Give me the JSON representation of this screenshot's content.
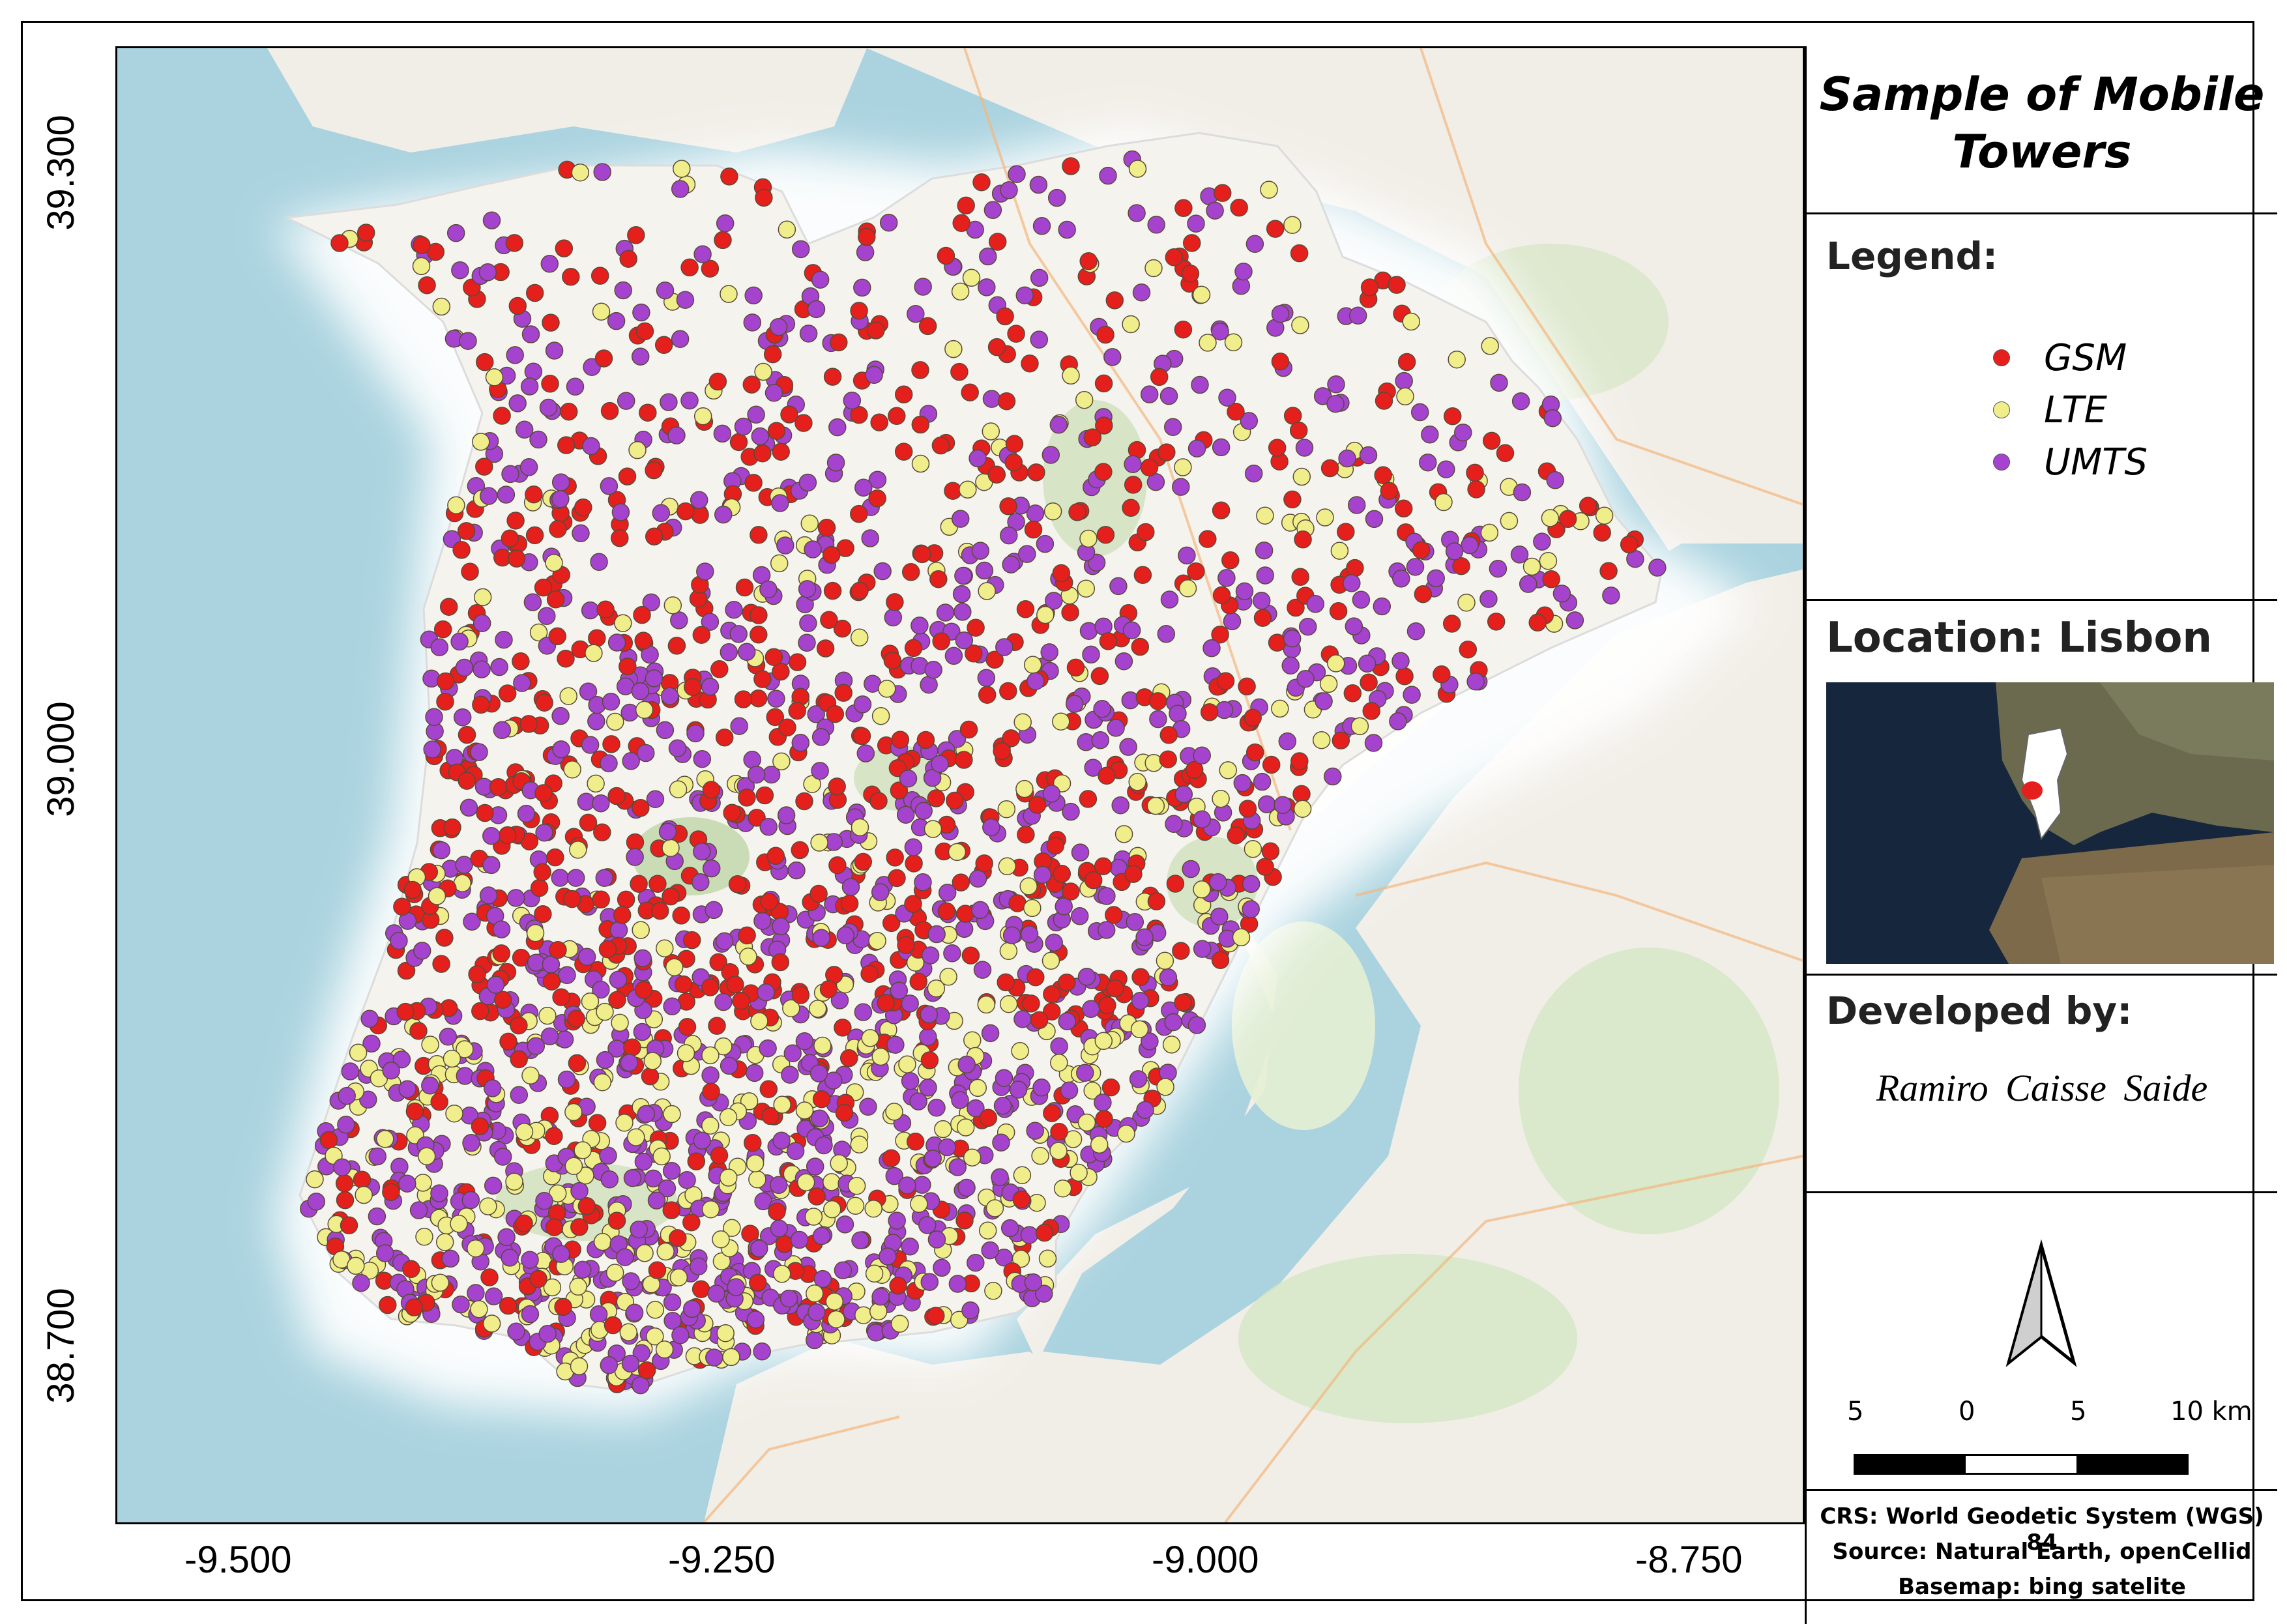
{
  "map": {
    "title": "Sample of Mobile Towers",
    "y_ticks": [
      "39.300",
      "39.000",
      "38.700"
    ],
    "x_ticks": [
      "-9.500",
      "-9.250",
      "-9.000",
      "-8.750"
    ],
    "colors": {
      "sea": "#aad3df",
      "land": "#f1eee8",
      "gsm": "#e5201c",
      "lte": "#f0ee8a",
      "umts": "#a543cf"
    }
  },
  "legend": {
    "heading": "Legend:",
    "items": [
      {
        "label": "GSM",
        "color": "#e5201c"
      },
      {
        "label": "LTE",
        "color": "#f0ee8a"
      },
      {
        "label": "UMTS",
        "color": "#a543cf"
      }
    ]
  },
  "location": {
    "heading": "Location: Lisbon"
  },
  "developer": {
    "heading": "Developed by:",
    "name": "Ramiro Caisse Saide"
  },
  "scalebar": {
    "labels": [
      "5",
      "0",
      "5",
      "10 km"
    ]
  },
  "credits": [
    "CRS: World Geodetic System (WGS) 84",
    "Source: Natural Earth, openCellid",
    "Basemap: bing satelite"
  ]
}
